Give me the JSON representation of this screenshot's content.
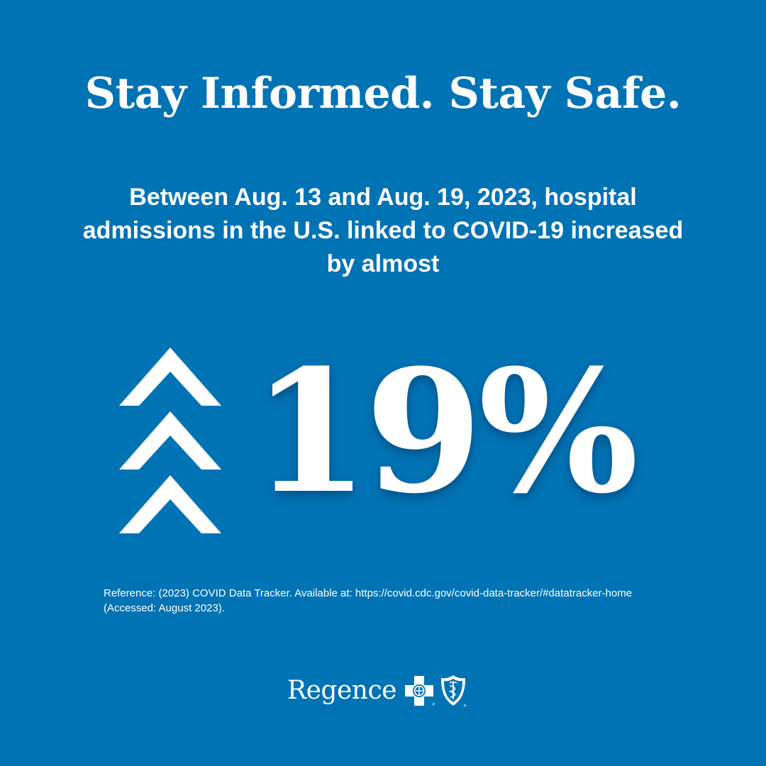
{
  "headline": "Stay Informed. Stay Safe.",
  "subline": "Between Aug. 13 and Aug. 19, 2023, hospital admissions in the U.S. linked to COVID-19 increased by almost",
  "stat": {
    "value": "19%",
    "icon": "triple-chevron-up-icon"
  },
  "reference": "Reference: (2023) COVID Data Tracker. Available at: https://covid.cdc.gov/covid-data-tracker/#datatracker-home (Accessed: August 2023).",
  "brand": {
    "name": "Regence",
    "logo_icons": [
      "blue-cross-icon",
      "blue-shield-icon"
    ]
  },
  "colors": {
    "background": "#0073B5",
    "text": "#FFFFFF"
  }
}
